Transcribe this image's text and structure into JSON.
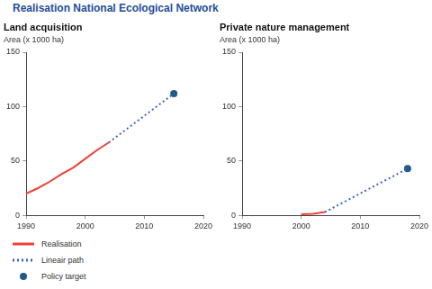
{
  "title": "Realisation National Ecological Network",
  "chart_data": [
    {
      "type": "line",
      "title": "Land acquisition",
      "y_label": "Area (x 1000 ha)",
      "xlim": [
        1990,
        2020
      ],
      "xticks": [
        1990,
        2000,
        2010,
        2020
      ],
      "ylim": [
        0,
        150
      ],
      "yticks": [
        0,
        50,
        100,
        150
      ],
      "grid": false,
      "legend": "bottom",
      "series": [
        {
          "name": "Realisation",
          "color": "#ee4035",
          "line_style": "solid",
          "marker": "none",
          "x": [
            1990,
            1992,
            1994,
            1996,
            1998,
            2000,
            2002,
            2004
          ],
          "values": [
            20,
            25,
            31,
            38,
            44,
            52,
            60,
            67
          ]
        },
        {
          "name": "Lineair path",
          "color": "#3a66c4",
          "line_style": "dotted",
          "marker": "none",
          "x": [
            2004,
            2015
          ],
          "values": [
            67,
            112
          ]
        },
        {
          "name": "Policy target",
          "color": "#1f5a8a",
          "type": "scatter",
          "marker": "circle",
          "x": [
            2015
          ],
          "values": [
            112
          ]
        }
      ]
    },
    {
      "type": "line",
      "title": "Private nature management",
      "y_label": "Area (x 1000 ha)",
      "xlim": [
        1990,
        2020
      ],
      "xticks": [
        1990,
        2000,
        2010,
        2020
      ],
      "ylim": [
        0,
        150
      ],
      "yticks": [
        0,
        50,
        100,
        150
      ],
      "grid": false,
      "series": [
        {
          "name": "Realisation",
          "color": "#ee4035",
          "line_style": "solid",
          "marker": "none",
          "x": [
            2000,
            2002,
            2004
          ],
          "values": [
            1,
            1.5,
            3
          ]
        },
        {
          "name": "Lineair path",
          "color": "#3a66c4",
          "line_style": "dotted",
          "marker": "none",
          "x": [
            2004,
            2018
          ],
          "values": [
            3,
            43
          ]
        },
        {
          "name": "Policy target",
          "color": "#1f5a8a",
          "type": "scatter",
          "marker": "circle",
          "x": [
            2018
          ],
          "values": [
            43
          ]
        }
      ]
    }
  ]
}
